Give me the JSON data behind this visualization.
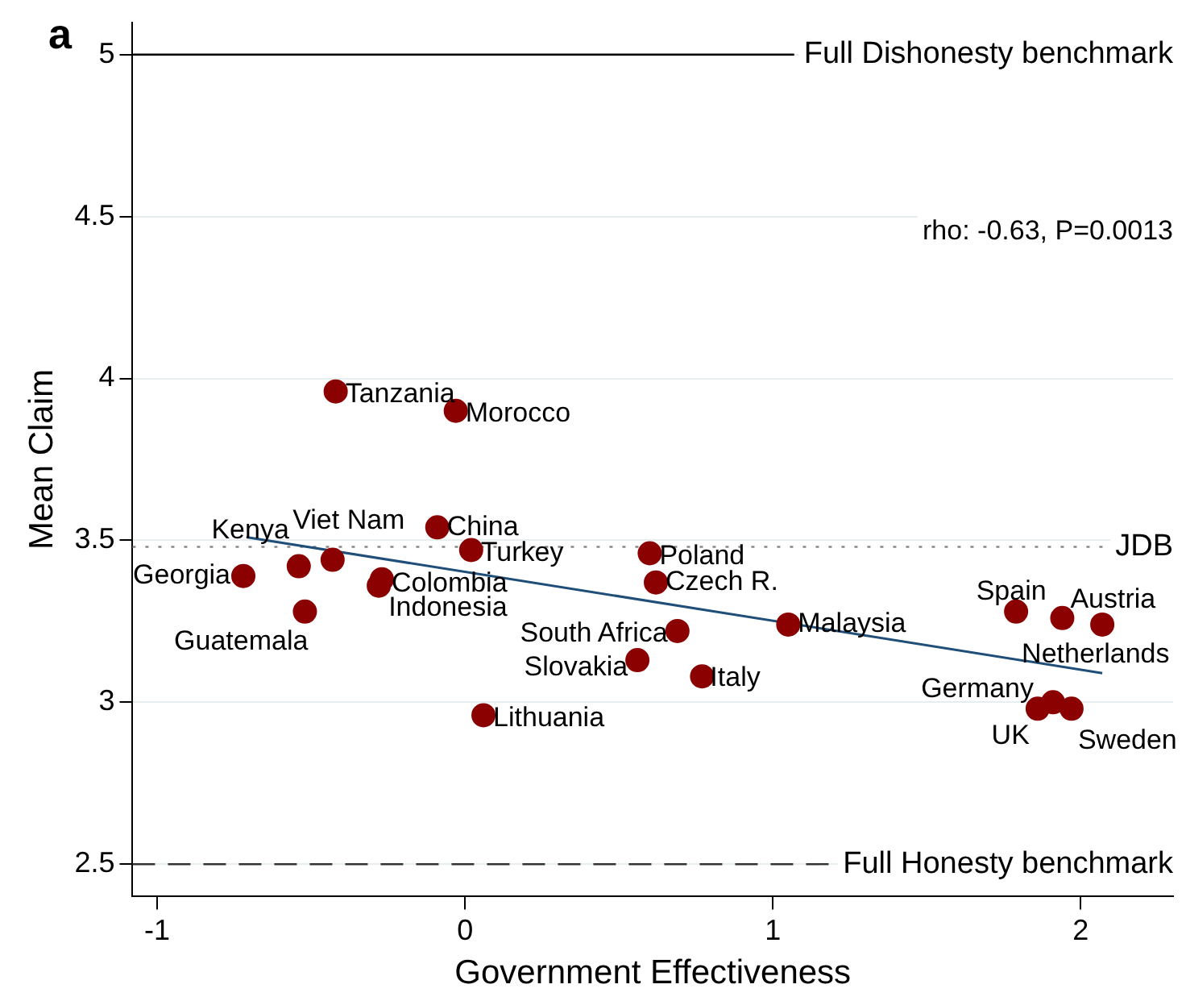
{
  "chart_data": {
    "type": "scatter",
    "title": "a",
    "xlabel": "Government Effectiveness",
    "ylabel": "Mean Claim",
    "xlim": [
      -1.08,
      2.3
    ],
    "ylim": [
      2.4,
      5.1
    ],
    "xticks": [
      -1,
      0,
      1,
      2
    ],
    "yticks": [
      2.5,
      3,
      3.5,
      4,
      4.5,
      5
    ],
    "grid": "y",
    "legend": false,
    "series": [
      {
        "marker": "circle",
        "color": "#8b0000",
        "x": [
          -0.42,
          -0.03,
          -0.09,
          0.02,
          -0.54,
          -0.43,
          -0.72,
          -0.52,
          -0.27,
          -0.28,
          0.06,
          0.6,
          0.62,
          0.69,
          0.56,
          0.77,
          1.05,
          1.79,
          1.94,
          2.07,
          1.91,
          1.86,
          1.97
        ],
        "values": [
          3.96,
          3.9,
          3.54,
          3.47,
          3.42,
          3.44,
          3.39,
          3.28,
          3.38,
          3.36,
          2.96,
          3.46,
          3.37,
          3.22,
          3.13,
          3.08,
          3.24,
          3.28,
          3.26,
          3.24,
          3.0,
          2.98,
          2.98
        ]
      },
      {
        "type": "line",
        "color": "#1f4e79",
        "x": [
          -0.71,
          2.07
        ],
        "values": [
          3.51,
          3.09
        ]
      }
    ],
    "ref_lines": [
      {
        "axis": "y",
        "value": 5,
        "label": "Full Dishonesty benchmark",
        "color": "#000000",
        "line_style": "solid"
      },
      {
        "axis": "y",
        "value": 2.5,
        "label": "Full Honesty benchmark",
        "color": "#333333",
        "line_style": "dashed"
      },
      {
        "axis": "y",
        "value": 3.48,
        "label": "JDB",
        "color": "#888888",
        "line_style": "dotted"
      }
    ],
    "annotations": [
      {
        "text": "Tanzania",
        "x": -0.42,
        "y": 3.96
      },
      {
        "text": "Morocco",
        "x": -0.03,
        "y": 3.9
      },
      {
        "text": "China",
        "x": -0.09,
        "y": 3.54
      },
      {
        "text": "Turkey",
        "x": 0.02,
        "y": 3.47
      },
      {
        "text": "Kenya",
        "x": -0.54,
        "y": 3.42
      },
      {
        "text": "Viet Nam",
        "x": -0.43,
        "y": 3.44
      },
      {
        "text": "Georgia",
        "x": -0.72,
        "y": 3.39
      },
      {
        "text": "Guatemala",
        "x": -0.52,
        "y": 3.28
      },
      {
        "text": "Colombia",
        "x": -0.27,
        "y": 3.38
      },
      {
        "text": "Indonesia",
        "x": -0.28,
        "y": 3.36
      },
      {
        "text": "Lithuania",
        "x": 0.06,
        "y": 2.96
      },
      {
        "text": "Poland",
        "x": 0.6,
        "y": 3.46
      },
      {
        "text": "Czech R.",
        "x": 0.62,
        "y": 3.37
      },
      {
        "text": "South Africa",
        "x": 0.69,
        "y": 3.22
      },
      {
        "text": "Slovakia",
        "x": 0.56,
        "y": 3.13
      },
      {
        "text": "Italy",
        "x": 0.77,
        "y": 3.08
      },
      {
        "text": "Malaysia",
        "x": 1.05,
        "y": 3.24
      },
      {
        "text": "Spain",
        "x": 1.79,
        "y": 3.28
      },
      {
        "text": "Austria",
        "x": 1.94,
        "y": 3.26
      },
      {
        "text": "Netherlands",
        "x": 2.07,
        "y": 3.24
      },
      {
        "text": "Germany",
        "x": 1.91,
        "y": 3.0
      },
      {
        "text": "UK",
        "x": 1.86,
        "y": 2.98
      },
      {
        "text": "Sweden",
        "x": 1.97,
        "y": 2.98
      },
      "rho: -0.63, P=0.0013"
    ]
  }
}
